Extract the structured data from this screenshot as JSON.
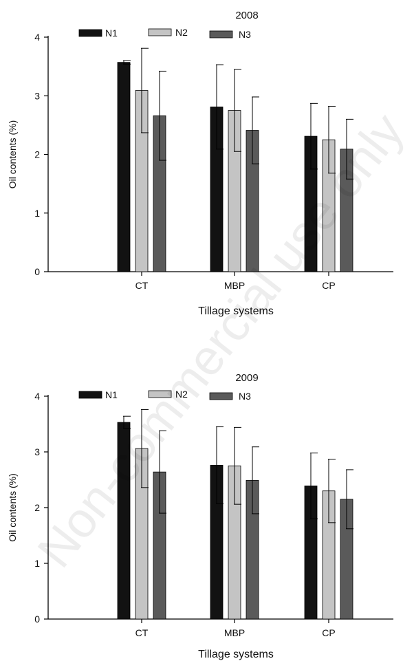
{
  "colors": {
    "N1": "#121212",
    "N2": "#c4c4c4",
    "N3": "#5a5a5a",
    "axis": "#000000"
  },
  "watermark": "Non-commercial use only",
  "chart_data": [
    {
      "type": "bar",
      "title": "2008",
      "xlabel": "Tillage systems",
      "ylabel": "Oil contents (%)",
      "ylim": [
        0,
        4
      ],
      "yticks": [
        "0",
        "1",
        "2",
        "3",
        "4"
      ],
      "categories": [
        "CT",
        "MBP",
        "CP"
      ],
      "legend_position": "top-left",
      "series": [
        {
          "name": "N1",
          "values": [
            3.57,
            2.81,
            2.31
          ],
          "errors": [
            0.03,
            0.72,
            0.56
          ]
        },
        {
          "name": "N2",
          "values": [
            3.09,
            2.75,
            2.25
          ],
          "errors": [
            0.72,
            0.7,
            0.57
          ]
        },
        {
          "name": "N3",
          "values": [
            2.66,
            2.41,
            2.09
          ],
          "errors": [
            0.76,
            0.57,
            0.51
          ]
        }
      ]
    },
    {
      "type": "bar",
      "title": "2009",
      "xlabel": "Tillage systems",
      "ylabel": "Oil contents (%)",
      "ylim": [
        0,
        4
      ],
      "yticks": [
        "0",
        "1",
        "2",
        "3",
        "4"
      ],
      "categories": [
        "CT",
        "MBP",
        "CP"
      ],
      "legend_position": "top-left",
      "series": [
        {
          "name": "N1",
          "values": [
            3.53,
            2.76,
            2.39
          ],
          "errors": [
            0.11,
            0.69,
            0.59
          ]
        },
        {
          "name": "N2",
          "values": [
            3.06,
            2.75,
            2.3
          ],
          "errors": [
            0.7,
            0.69,
            0.57
          ]
        },
        {
          "name": "N3",
          "values": [
            2.64,
            2.49,
            2.15
          ],
          "errors": [
            0.74,
            0.6,
            0.53
          ]
        }
      ]
    }
  ]
}
